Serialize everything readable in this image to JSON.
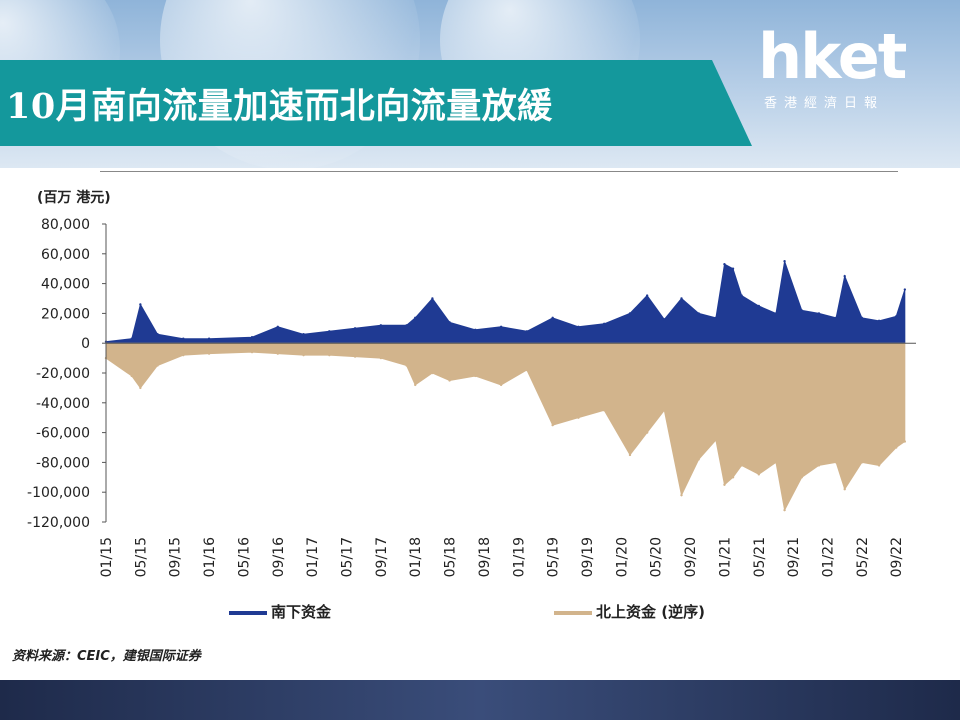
{
  "header": {
    "title": "10月南向流量加速而北向流量放緩",
    "logo_main": "hket",
    "logo_sub": "香港經濟日報"
  },
  "source_note": "资料来源：CEIC，建银国际证券",
  "chart_data": {
    "type": "area",
    "unit_label": "(百万 港元)",
    "ylim": [
      -120000,
      80000
    ],
    "yticks": [
      80000,
      60000,
      40000,
      20000,
      0,
      -20000,
      -40000,
      -60000,
      -80000,
      -100000,
      -120000
    ],
    "ytick_labels": [
      "80,000",
      "60,000",
      "40,000",
      "20,000",
      "0",
      "-20,000",
      "-40,000",
      "-60,000",
      "-80,000",
      "-100,000",
      "-120,000"
    ],
    "xtick_labels": [
      "01/15",
      "05/15",
      "09/15",
      "01/16",
      "05/16",
      "09/16",
      "01/17",
      "05/17",
      "09/17",
      "01/18",
      "05/18",
      "09/18",
      "01/19",
      "05/19",
      "09/19",
      "01/20",
      "05/20",
      "09/20",
      "01/21",
      "05/21",
      "09/21",
      "01/22",
      "05/22",
      "09/22"
    ],
    "colors": {
      "south": "#1f3a93",
      "north": "#d2b48c"
    },
    "series": [
      {
        "name": "南下资金",
        "x": [
          "2015-01",
          "2015-04",
          "2015-05",
          "2015-07",
          "2015-10",
          "2016-01",
          "2016-06",
          "2016-09",
          "2016-12",
          "2017-03",
          "2017-06",
          "2017-09",
          "2017-12",
          "2018-01",
          "2018-03",
          "2018-05",
          "2018-08",
          "2018-11",
          "2019-02",
          "2019-05",
          "2019-08",
          "2019-11",
          "2020-02",
          "2020-04",
          "2020-06",
          "2020-08",
          "2020-10",
          "2020-12",
          "2021-01",
          "2021-02",
          "2021-03",
          "2021-05",
          "2021-07",
          "2021-08",
          "2021-10",
          "2021-12",
          "2022-02",
          "2022-03",
          "2022-05",
          "2022-07",
          "2022-09",
          "2022-10"
        ],
        "values": [
          1000,
          3000,
          26000,
          6000,
          3000,
          3000,
          4000,
          11000,
          6000,
          8000,
          10000,
          12000,
          12000,
          17000,
          30000,
          14000,
          9000,
          11000,
          8000,
          17000,
          11000,
          13000,
          20000,
          32000,
          16000,
          30000,
          20000,
          17000,
          53000,
          50000,
          32000,
          25000,
          20000,
          55000,
          22000,
          20000,
          17000,
          45000,
          17000,
          15000,
          18000,
          36000
        ]
      },
      {
        "name": "北上资金 (逆序)",
        "x": [
          "2015-01",
          "2015-04",
          "2015-05",
          "2015-07",
          "2015-10",
          "2016-01",
          "2016-06",
          "2016-09",
          "2016-12",
          "2017-03",
          "2017-06",
          "2017-09",
          "2017-12",
          "2018-01",
          "2018-03",
          "2018-05",
          "2018-08",
          "2018-11",
          "2019-02",
          "2019-05",
          "2019-08",
          "2019-11",
          "2020-02",
          "2020-04",
          "2020-06",
          "2020-08",
          "2020-10",
          "2020-12",
          "2021-01",
          "2021-02",
          "2021-03",
          "2021-05",
          "2021-07",
          "2021-08",
          "2021-10",
          "2021-12",
          "2022-02",
          "2022-03",
          "2022-05",
          "2022-07",
          "2022-09",
          "2022-10"
        ],
        "values": [
          -10000,
          -22000,
          -30000,
          -15000,
          -8000,
          -7000,
          -6000,
          -7000,
          -8000,
          -8000,
          -9000,
          -10000,
          -15000,
          -28000,
          -20000,
          -25000,
          -22000,
          -28000,
          -18000,
          -55000,
          -50000,
          -45000,
          -75000,
          -60000,
          -45000,
          -102000,
          -78000,
          -65000,
          -95000,
          -90000,
          -82000,
          -88000,
          -80000,
          -112000,
          -90000,
          -82000,
          -80000,
          -98000,
          -80000,
          -82000,
          -70000,
          -66000
        ]
      }
    ]
  }
}
